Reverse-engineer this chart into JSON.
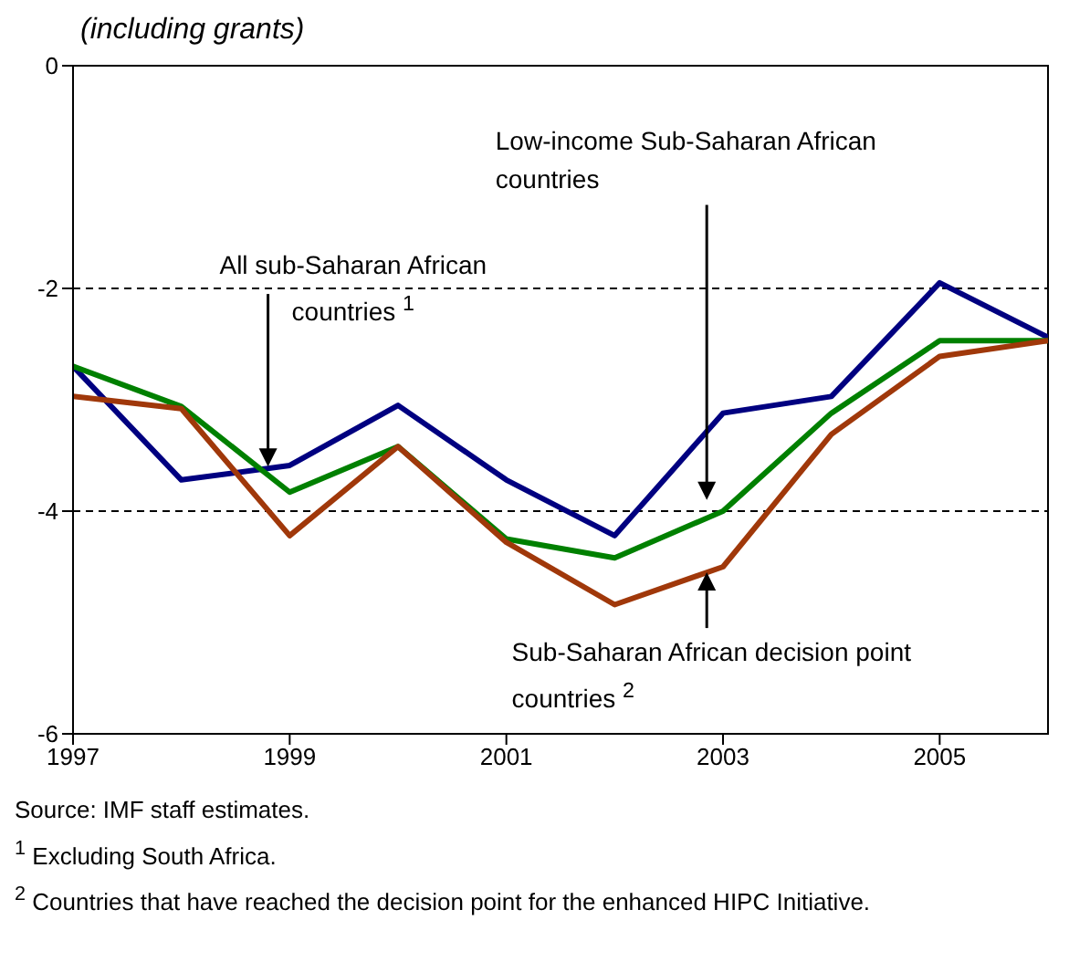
{
  "chart_data": {
    "type": "line",
    "subtitle": "(including grants)",
    "x": [
      1997,
      1998,
      1999,
      2000,
      2001,
      2002,
      2003,
      2004,
      2005,
      2006
    ],
    "xlim": [
      1997,
      2006
    ],
    "xticks": [
      1997,
      1999,
      2001,
      2003,
      2005
    ],
    "ylim": [
      -6,
      0
    ],
    "yticks": [
      -6,
      -4,
      -2,
      0
    ],
    "grid": "y",
    "marker": "none",
    "line_style": "solid",
    "series": [
      {
        "name": "Low-income Sub-Saharan African countries",
        "color": "#000080",
        "values": [
          -2.7,
          -3.72,
          -3.59,
          -3.05,
          -3.72,
          -4.22,
          -3.12,
          -2.97,
          -1.95,
          -2.44
        ]
      },
      {
        "name": "All sub-Saharan African countries $^{1}$",
        "color": "#008000",
        "values": [
          -2.7,
          -3.06,
          -3.83,
          -3.42,
          -4.25,
          -4.42,
          -4.0,
          -3.12,
          -2.47,
          -2.47
        ]
      },
      {
        "name": "Sub-Saharan African decision point countries $^{2}$",
        "color": "#a0380a",
        "values": [
          -2.97,
          -3.08,
          -4.22,
          -3.42,
          -4.28,
          -4.84,
          -4.5,
          -3.31,
          -2.61,
          -2.47
        ]
      }
    ],
    "annotations": [
      "Source: IMF staff estimates.",
      "$^{1}$ Excluding South Africa.",
      "$^{2}$ Countries that have reached the decision point for the enhanced HIPC Initiative."
    ]
  }
}
